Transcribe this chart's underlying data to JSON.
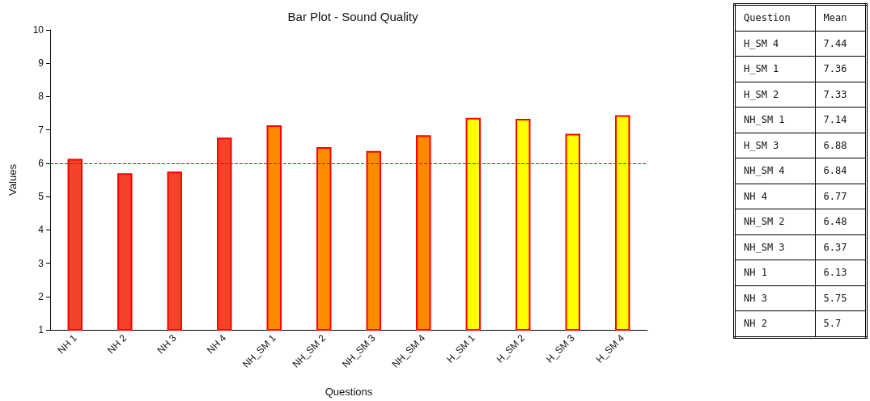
{
  "chart_data": [
    {
      "type": "bar",
      "title": "Bar Plot - Sound Quality",
      "xlabel": "Questions",
      "ylabel": "Values",
      "categories": [
        "NH 1",
        "NH 2",
        "NH 3",
        "NH 4",
        "NH_SM 1",
        "NH_SM 2",
        "NH_SM 3",
        "NH_SM 4",
        "H_SM 1",
        "H_SM 2",
        "H_SM 3",
        "H_SM 4"
      ],
      "values": [
        6.13,
        5.7,
        5.75,
        6.77,
        7.14,
        6.48,
        6.37,
        6.84,
        7.36,
        7.33,
        6.88,
        7.44
      ],
      "colors": [
        "#f5432a",
        "#f5432a",
        "#f5432a",
        "#f5432a",
        "#fb8c00",
        "#fb8c00",
        "#fb8c00",
        "#fb8c00",
        "#ffff00",
        "#ffff00",
        "#ffff00",
        "#ffff00"
      ],
      "ylim": [
        1,
        10
      ],
      "yticks": [
        1,
        2,
        3,
        4,
        5,
        6,
        7,
        8,
        9,
        10
      ],
      "grid": false,
      "ref_lines": [
        {
          "axis": "y",
          "value": 6,
          "color": "#ff0000",
          "line_style": "dashed"
        }
      ]
    },
    {
      "type": "other",
      "xlabel": "Question",
      "ylabel": "Mean",
      "data_labels": true,
      "categories": [
        "H_SM 4",
        "H_SM 1",
        "H_SM 2",
        "NH_SM 1",
        "H_SM 3",
        "NH_SM 4",
        "NH 4",
        "NH_SM 2",
        "NH_SM 3",
        "NH 1",
        "NH 3",
        "NH 2"
      ],
      "values": [
        7.44,
        7.36,
        7.33,
        7.14,
        6.88,
        6.84,
        6.77,
        6.48,
        6.37,
        6.13,
        5.75,
        5.7
      ]
    }
  ]
}
